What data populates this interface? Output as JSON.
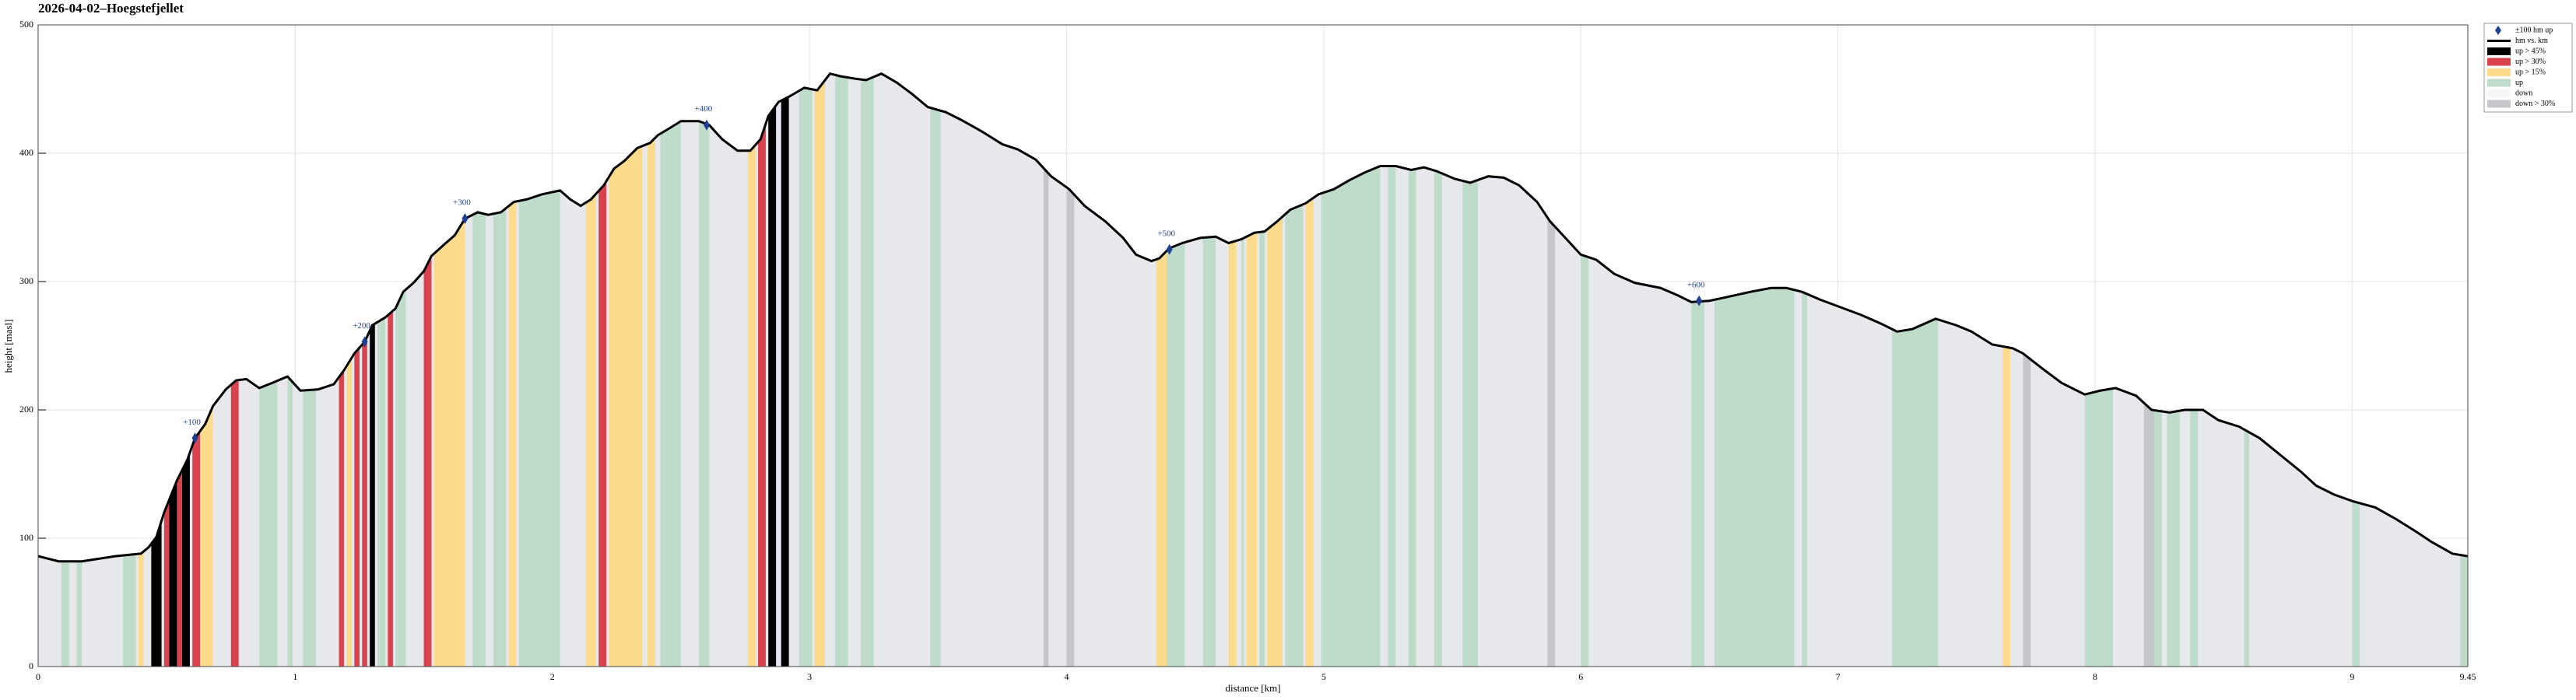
{
  "chart_data": {
    "type": "profile",
    "title": "2026-04-02–Hoegstefjellet",
    "xlabel": "distance [km]",
    "ylabel": "height [masl]",
    "xlim": [
      0,
      9.45
    ],
    "ylim": [
      0,
      500
    ],
    "xticks": [
      0,
      1,
      2,
      3,
      4,
      5,
      6,
      7,
      8,
      9,
      9.45
    ],
    "yticks": [
      0,
      100,
      200,
      300,
      400,
      500
    ],
    "grid": true,
    "legend": "upper right outside",
    "profile": {
      "name": "hm vs. km",
      "color": "#000000",
      "x": [
        0,
        0.08,
        0.17,
        0.3,
        0.4,
        0.43,
        0.46,
        0.49,
        0.54,
        0.58,
        0.61,
        0.65,
        0.68,
        0.73,
        0.77,
        0.81,
        0.86,
        0.91,
        0.97,
        1.02,
        1.09,
        1.15,
        1.19,
        1.23,
        1.27,
        1.3,
        1.35,
        1.39,
        1.42,
        1.46,
        1.5,
        1.53,
        1.58,
        1.62,
        1.66,
        1.71,
        1.75,
        1.8,
        1.85,
        1.9,
        1.96,
        2.03,
        2.07,
        2.11,
        2.15,
        2.2,
        2.24,
        2.28,
        2.33,
        2.38,
        2.41,
        2.46,
        2.5,
        2.57,
        2.61,
        2.66,
        2.72,
        2.77,
        2.81,
        2.84,
        2.88,
        2.92,
        2.98,
        3.03,
        3.08,
        3.12,
        3.18,
        3.22,
        3.28,
        3.34,
        3.4,
        3.46,
        3.53,
        3.59,
        3.67,
        3.75,
        3.81,
        3.88,
        3.94,
        4.01,
        4.07,
        4.15,
        4.22,
        4.27,
        4.33,
        4.36,
        4.4,
        4.45,
        4.52,
        4.58,
        4.63,
        4.68,
        4.73,
        4.77,
        4.82,
        4.87,
        4.93,
        4.98,
        5.04,
        5.1,
        5.16,
        5.22,
        5.28,
        5.34,
        5.39,
        5.44,
        5.51,
        5.57,
        5.64,
        5.7,
        5.76,
        5.83,
        5.88,
        5.94,
        6.0,
        6.06,
        6.13,
        6.21,
        6.31,
        6.38,
        6.43,
        6.5,
        6.57,
        6.66,
        6.74,
        6.8,
        6.86,
        6.93,
        7.01,
        7.09,
        7.17,
        7.23,
        7.29,
        7.38,
        7.46,
        7.52,
        7.6,
        7.68,
        7.72,
        7.79,
        7.87,
        7.96,
        8.02,
        8.08,
        8.16,
        8.22,
        8.29,
        8.35,
        8.42,
        8.48,
        8.56,
        8.64,
        8.72,
        8.8,
        8.86,
        8.93,
        9.0,
        9.09,
        9.17,
        9.25,
        9.31,
        9.39,
        9.45
      ],
      "values": [
        86,
        82,
        82,
        86,
        88,
        93,
        101,
        120,
        145,
        161,
        178,
        189,
        203,
        216,
        223,
        224,
        217,
        221,
        226,
        215,
        216,
        220,
        231,
        244,
        253,
        266,
        272,
        279,
        292,
        299,
        308,
        320,
        329,
        336,
        349,
        354,
        352,
        354,
        362,
        364,
        368,
        371,
        364,
        359,
        364,
        375,
        388,
        394,
        404,
        408,
        414,
        420,
        425,
        425,
        422,
        411,
        402,
        402,
        411,
        429,
        440,
        444,
        451,
        449,
        462,
        460,
        458,
        457,
        462,
        455,
        446,
        436,
        432,
        426,
        417,
        407,
        403,
        395,
        382,
        372,
        359,
        347,
        334,
        321,
        316,
        318,
        326,
        330,
        334,
        335,
        330,
        333,
        338,
        339,
        347,
        356,
        361,
        368,
        372,
        379,
        385,
        390,
        390,
        387,
        389,
        386,
        380,
        377,
        382,
        381,
        375,
        362,
        347,
        334,
        321,
        317,
        306,
        299,
        295,
        289,
        284,
        285,
        288,
        292,
        295,
        295,
        292,
        286,
        280,
        274,
        267,
        261,
        263,
        271,
        266,
        261,
        251,
        248,
        244,
        233,
        221,
        212,
        215,
        217,
        211,
        200,
        198,
        200,
        200,
        192,
        187,
        178,
        165,
        152,
        141,
        134,
        129,
        124,
        115,
        105,
        97,
        88,
        86
      ]
    },
    "markers": {
      "name": "±100 hm up",
      "color": "#1f3f8f",
      "x": [
        0.61,
        1.27,
        1.66,
        2.6,
        4.4,
        6.46
      ],
      "values": [
        178,
        253,
        349,
        422,
        325,
        285
      ],
      "labels": [
        "+100",
        "+200",
        "+300",
        "+400",
        "+500",
        "+600"
      ]
    },
    "bands": [
      {
        "name": "up > 45%",
        "color": "#000000",
        "intervals": [
          [
            0.44,
            0.48
          ],
          [
            0.51,
            0.54
          ],
          [
            0.56,
            0.59
          ],
          [
            1.29,
            1.31
          ],
          [
            2.84,
            2.87
          ],
          [
            2.89,
            2.92
          ]
        ]
      },
      {
        "name": "up > 30%",
        "color": "#d9434d",
        "intervals": [
          [
            0.49,
            0.51
          ],
          [
            0.54,
            0.56
          ],
          [
            0.6,
            0.63
          ],
          [
            0.75,
            0.78
          ],
          [
            1.17,
            1.19
          ],
          [
            1.23,
            1.25
          ],
          [
            1.26,
            1.28
          ],
          [
            1.36,
            1.38
          ],
          [
            1.5,
            1.53
          ],
          [
            2.18,
            2.21
          ],
          [
            2.8,
            2.83
          ]
        ]
      },
      {
        "name": "up > 15%",
        "color": "#fcdc8c",
        "intervals": [
          [
            0.39,
            0.41
          ],
          [
            0.63,
            0.68
          ],
          [
            1.2,
            1.22
          ],
          [
            1.54,
            1.66
          ],
          [
            1.83,
            1.86
          ],
          [
            2.13,
            2.17
          ],
          [
            2.22,
            2.35
          ],
          [
            2.37,
            2.4
          ],
          [
            2.76,
            2.79
          ],
          [
            3.02,
            3.06
          ],
          [
            4.35,
            4.39
          ],
          [
            4.63,
            4.66
          ],
          [
            4.7,
            4.74
          ],
          [
            4.78,
            4.84
          ],
          [
            4.93,
            4.96
          ],
          [
            7.64,
            7.67
          ]
        ]
      },
      {
        "name": "up",
        "color": "#bfdccb",
        "intervals": [
          [
            0.09,
            0.12
          ],
          [
            0.15,
            0.17
          ],
          [
            0.33,
            0.38
          ],
          [
            0.86,
            0.93
          ],
          [
            0.97,
            0.99
          ],
          [
            1.03,
            1.08
          ],
          [
            1.32,
            1.35
          ],
          [
            1.39,
            1.43
          ],
          [
            1.69,
            1.74
          ],
          [
            1.77,
            1.82
          ],
          [
            1.87,
            2.03
          ],
          [
            2.42,
            2.5
          ],
          [
            2.57,
            2.61
          ],
          [
            2.96,
            3.01
          ],
          [
            3.1,
            3.15
          ],
          [
            3.2,
            3.25
          ],
          [
            3.47,
            3.51
          ],
          [
            4.39,
            4.46
          ],
          [
            4.53,
            4.58
          ],
          [
            4.68,
            4.69
          ],
          [
            4.75,
            4.77
          ],
          [
            4.85,
            4.92
          ],
          [
            4.99,
            5.22
          ],
          [
            5.25,
            5.28
          ],
          [
            5.33,
            5.36
          ],
          [
            5.43,
            5.46
          ],
          [
            5.54,
            5.6
          ],
          [
            6.0,
            6.03
          ],
          [
            6.43,
            6.48
          ],
          [
            6.52,
            6.83
          ],
          [
            6.86,
            6.88
          ],
          [
            7.21,
            7.39
          ],
          [
            7.96,
            8.07
          ],
          [
            8.21,
            8.26
          ],
          [
            8.28,
            8.33
          ],
          [
            8.37,
            8.4
          ],
          [
            8.58,
            8.6
          ],
          [
            9.0,
            9.03
          ],
          [
            9.42,
            9.45
          ]
        ]
      },
      {
        "name": "down",
        "color": "#e7e8ec",
        "intervals": []
      },
      {
        "name": "down > 30%",
        "color": "#c5c7cd",
        "intervals": [
          [
            3.91,
            3.93
          ],
          [
            4.0,
            4.03
          ],
          [
            5.87,
            5.9
          ],
          [
            7.72,
            7.75
          ],
          [
            8.19,
            8.23
          ]
        ]
      }
    ]
  }
}
